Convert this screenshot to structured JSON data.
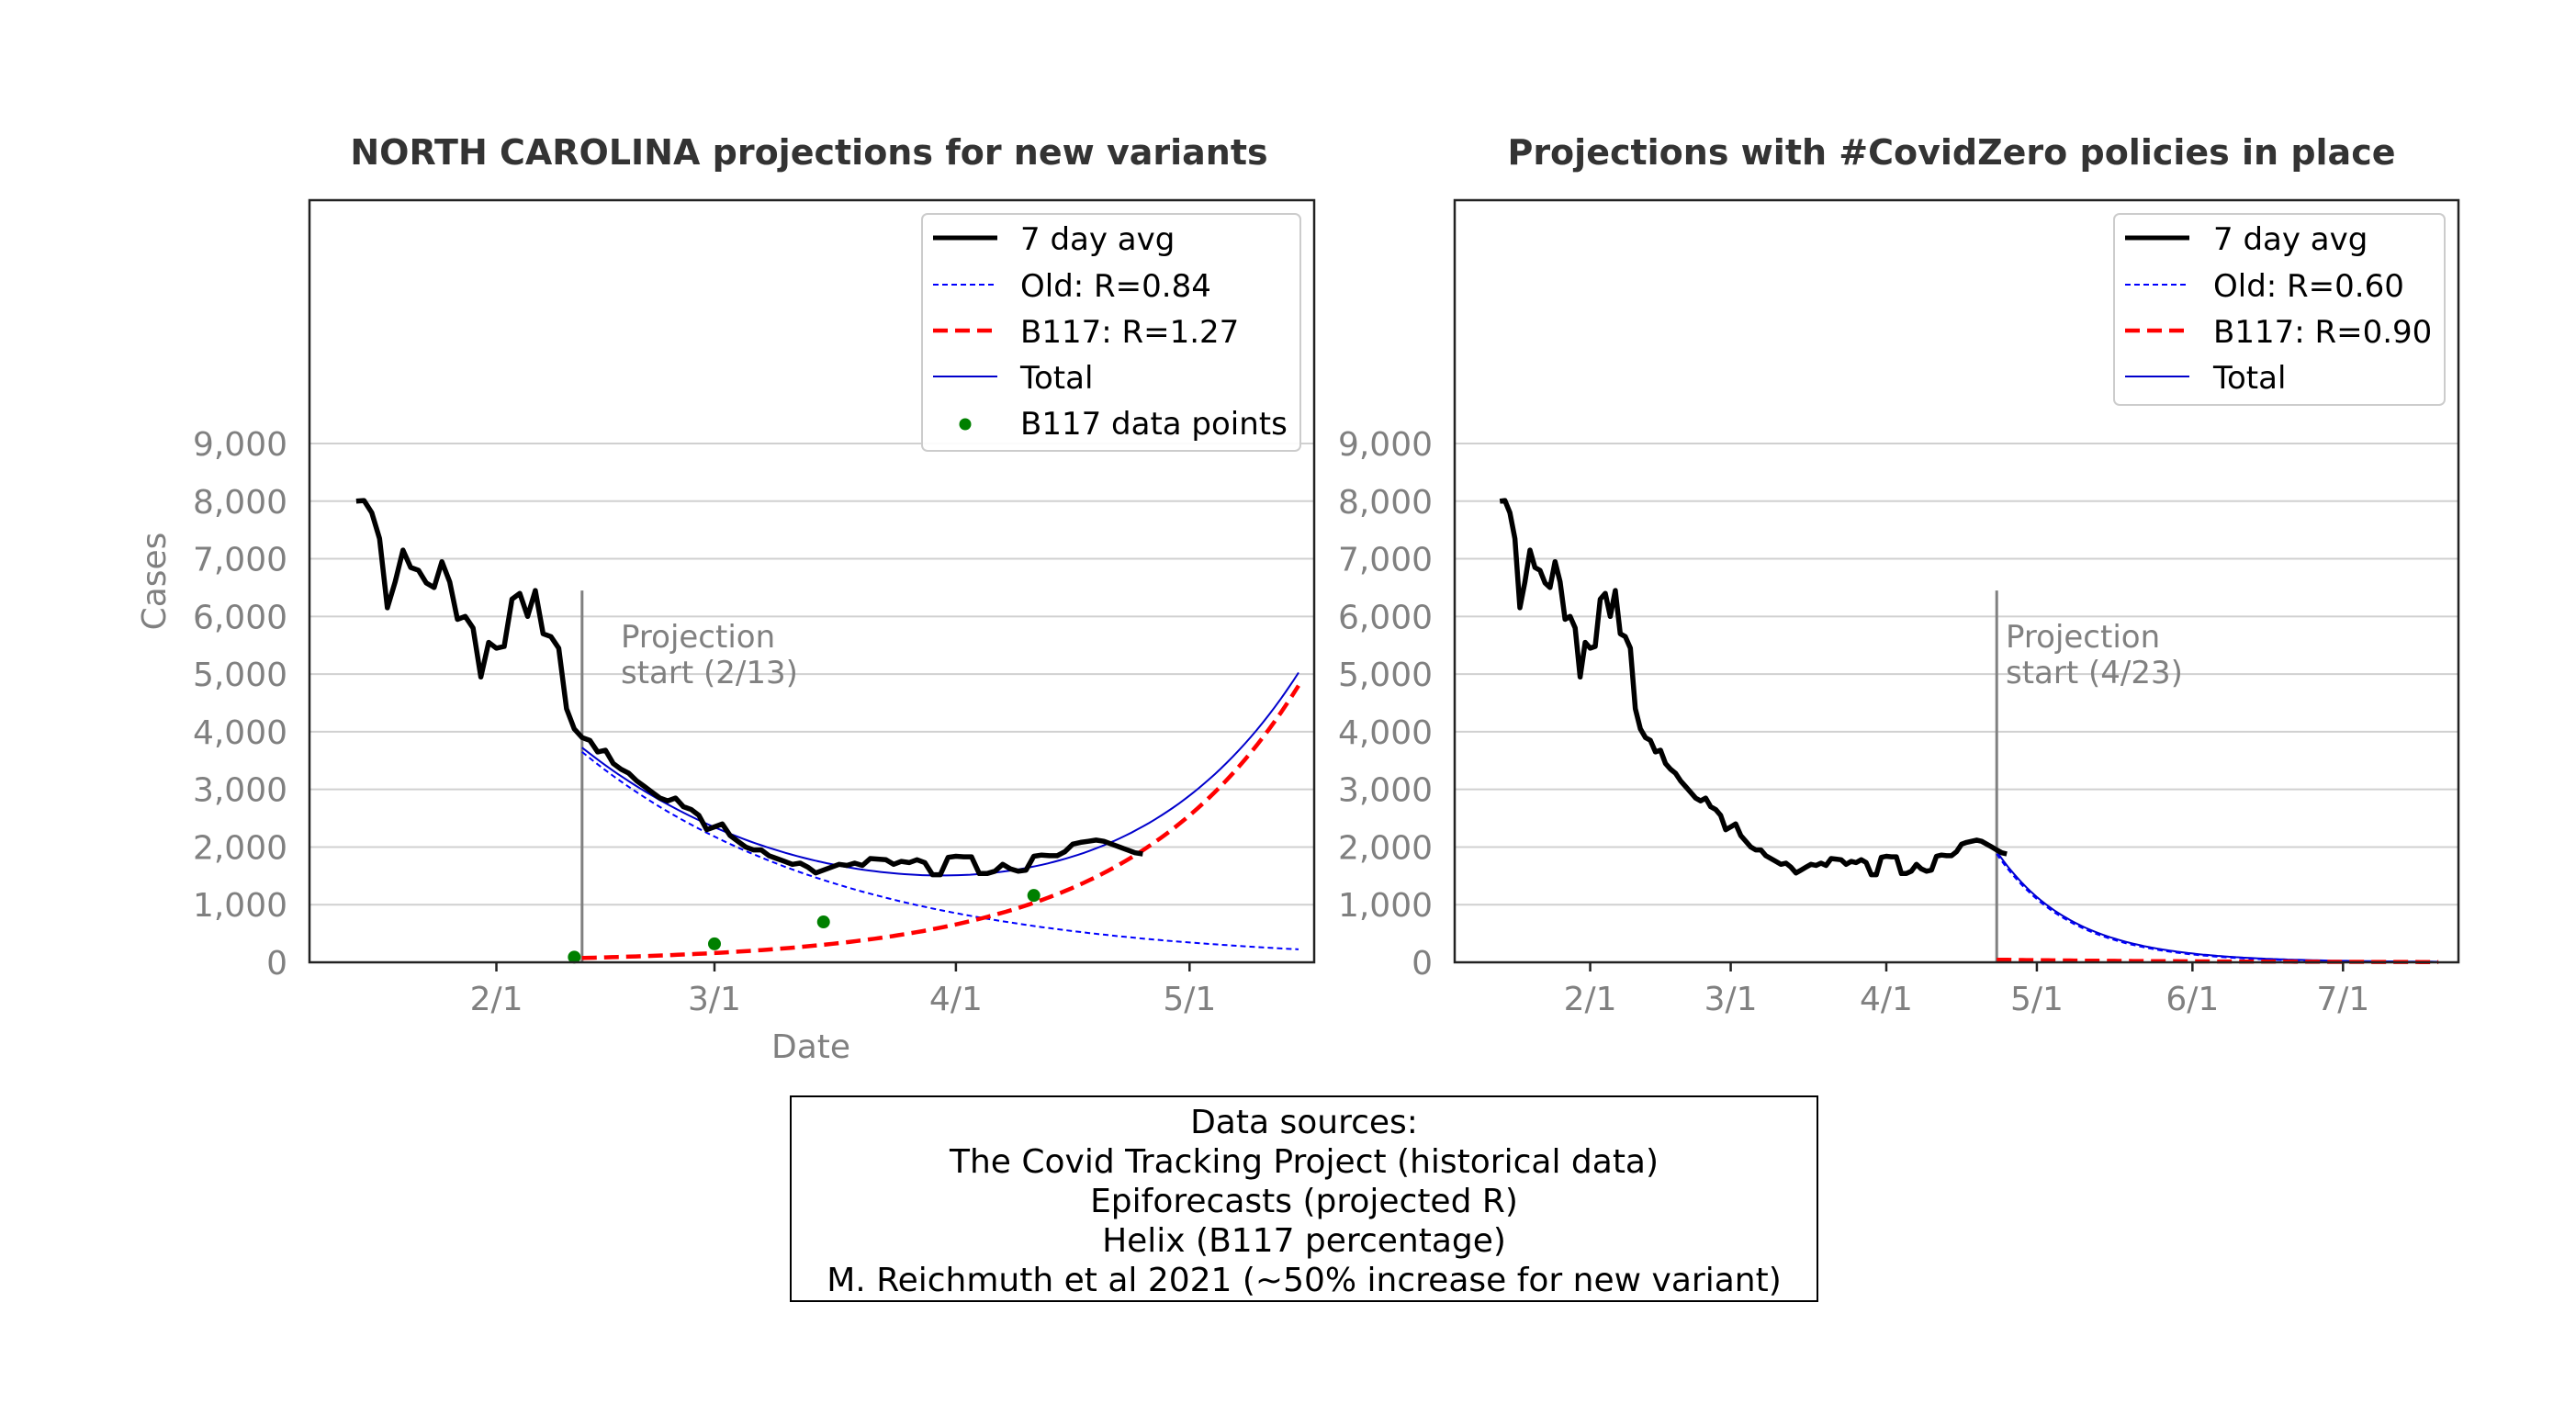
{
  "chart_data": [
    {
      "type": "line",
      "title": "NORTH CAROLINA projections for new variants",
      "xlabel": "Date",
      "ylabel": "Cases",
      "ylim": [
        0,
        9000
      ],
      "yticks": [
        0,
        1000,
        2000,
        3000,
        4000,
        5000,
        6000,
        7000,
        8000,
        9000
      ],
      "ytick_labels": [
        "0",
        "1,000",
        "2,000",
        "3,000",
        "4,000",
        "5,000",
        "6,000",
        "7,000",
        "8,000",
        "9,000"
      ],
      "xticks_day": [
        17,
        45,
        76,
        106
      ],
      "xtick_labels": [
        "2/1",
        "3/1",
        "4/1",
        "5/1"
      ],
      "xlim_day": [
        -7,
        122
      ],
      "legend_position": "top-right",
      "annotation": {
        "day": 28,
        "text_line1": "Projection",
        "text_line2": "start (2/13)"
      },
      "series": [
        {
          "name": "7 day avg",
          "style": "thick-black",
          "start_day": -1,
          "values": [
            8000,
            8010,
            7800,
            7350,
            6150,
            6600,
            7150,
            6850,
            6800,
            6580,
            6500,
            6950,
            6600,
            5950,
            6000,
            5800,
            4950,
            5550,
            5450,
            5480,
            6300,
            6400,
            6000,
            6450,
            5700,
            5650,
            5450,
            4400,
            4050,
            3900,
            3850,
            3650,
            3680,
            3450,
            3350,
            3280,
            3150,
            3050,
            2950,
            2850,
            2800,
            2850,
            2700,
            2650,
            2550,
            2300,
            2350,
            2400,
            2200,
            2100,
            2000,
            1950,
            1950,
            1850,
            1800,
            1750,
            1700,
            1720,
            1650,
            1550,
            1600,
            1650,
            1700,
            1680,
            1720,
            1680,
            1800,
            1790,
            1780,
            1700,
            1750,
            1730,
            1780,
            1730,
            1520,
            1520,
            1820,
            1840,
            1830,
            1830,
            1540,
            1540,
            1580,
            1700,
            1620,
            1580,
            1600,
            1840,
            1860,
            1850,
            1850,
            1920,
            2050,
            2080,
            2100,
            2120,
            2100,
            2050,
            2000,
            1950,
            1900,
            1880
          ]
        },
        {
          "name": "Old: R=0.84",
          "style": "dashed-blue",
          "start_day": 28,
          "end_day": 120,
          "start_value": 3650,
          "end_value": 225
        },
        {
          "name": "B117: R=1.27",
          "style": "dashed-red",
          "start_day": 28,
          "end_day": 120,
          "start_value": 75,
          "end_value": 4800
        },
        {
          "name": "Total",
          "style": "thin-blue"
        },
        {
          "name": "B117 data points",
          "style": "green-dots",
          "points": [
            [
              27,
              90
            ],
            [
              45,
              320
            ],
            [
              59,
              700
            ],
            [
              86,
              1160
            ]
          ]
        }
      ]
    },
    {
      "type": "line",
      "title": "Projections with #CovidZero policies in place",
      "ylim": [
        0,
        9000
      ],
      "yticks": [
        0,
        1000,
        2000,
        3000,
        4000,
        5000,
        6000,
        7000,
        8000,
        9000
      ],
      "ytick_labels": [
        "0",
        "1,000",
        "2,000",
        "3,000",
        "4,000",
        "5,000",
        "6,000",
        "7,000",
        "8,000",
        "9,000"
      ],
      "xticks_day": [
        17,
        45,
        76,
        106,
        137,
        167
      ],
      "xtick_labels": [
        "2/1",
        "3/1",
        "4/1",
        "5/1",
        "6/1",
        "7/1"
      ],
      "xlim_day": [
        -10,
        190
      ],
      "legend_position": "top-right",
      "annotation": {
        "day": 98,
        "text_line1": "Projection",
        "text_line2": "start (4/23)"
      },
      "series": [
        {
          "name": "7 day avg",
          "style": "thick-black",
          "source": "same as first chart"
        },
        {
          "name": "Old: R=0.60",
          "style": "dashed-blue",
          "start_day": 98,
          "end_day": 186,
          "start_value": 1880,
          "end_value": 5
        },
        {
          "name": "B117: R=0.90",
          "style": "dashed-red",
          "start_day": 98,
          "end_day": 186,
          "start_value": 45,
          "end_value": 5
        },
        {
          "name": "Total",
          "style": "thin-blue"
        }
      ]
    }
  ],
  "sources": {
    "heading": "Data sources:",
    "line1": "The Covid Tracking Project (historical data)",
    "line2": "Epiforecasts (projected R)",
    "line3": "Helix (B117 percentage)",
    "line4": "M. Reichmuth et al 2021 (~50% increase for new variant)"
  },
  "colors": {
    "avg": "#000000",
    "old": "#0000ff",
    "b117": "#ff0000",
    "total": "#0000cc",
    "points": "#008000",
    "grid": "#d0d0d0",
    "muted": "#808080",
    "title": "#333333"
  }
}
